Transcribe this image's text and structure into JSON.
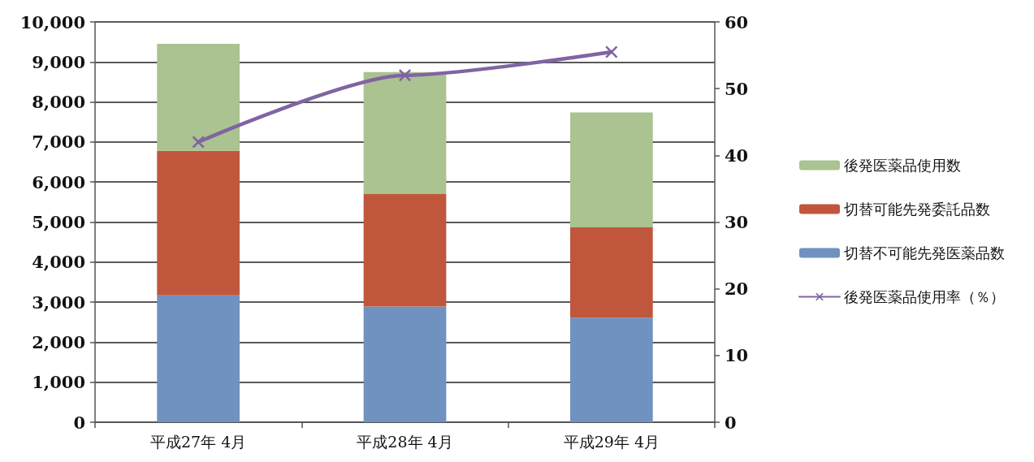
{
  "chart_data": {
    "type": "bar",
    "stacked": true,
    "categories": [
      "平成27年 4月",
      "平成28年 4月",
      "平成29年 4月"
    ],
    "series": [
      {
        "name": "切替不可能先発医薬品数",
        "color": "#7092c0",
        "values": [
          3170,
          2890,
          2610
        ]
      },
      {
        "name": "切替可能先発委託品数",
        "color": "#c0573d",
        "values": [
          3610,
          2810,
          2260
        ]
      },
      {
        "name": "後発医薬品使用数",
        "color": "#abc291",
        "values": [
          2670,
          3050,
          2870
        ]
      },
      {
        "name": "後発医薬品使用率（％）",
        "type": "line",
        "axis": "y2",
        "color": "#8064a2",
        "values": [
          42,
          52,
          55.5
        ]
      }
    ],
    "ylim": [
      0,
      10000
    ],
    "yticks": [
      0,
      {
        "value": 1000,
        "label": "1,000"
      },
      {
        "value": 2000,
        "label": "2,000"
      },
      {
        "value": 3000,
        "label": "3,000"
      },
      {
        "value": 4000,
        "label": "4,000"
      },
      {
        "value": 5000,
        "label": "5,000"
      },
      {
        "value": 6000,
        "label": "6,000"
      },
      {
        "value": 7000,
        "label": "7,000"
      },
      {
        "value": 8000,
        "label": "8,000"
      },
      {
        "value": 9000,
        "label": "9,000"
      },
      {
        "value": 10000,
        "label": "10,000"
      }
    ],
    "y2lim": [
      0,
      60
    ],
    "y2ticks": [
      0,
      10,
      20,
      30,
      40,
      50,
      60
    ],
    "grid": "y",
    "legend": "right",
    "marker": "cross"
  }
}
